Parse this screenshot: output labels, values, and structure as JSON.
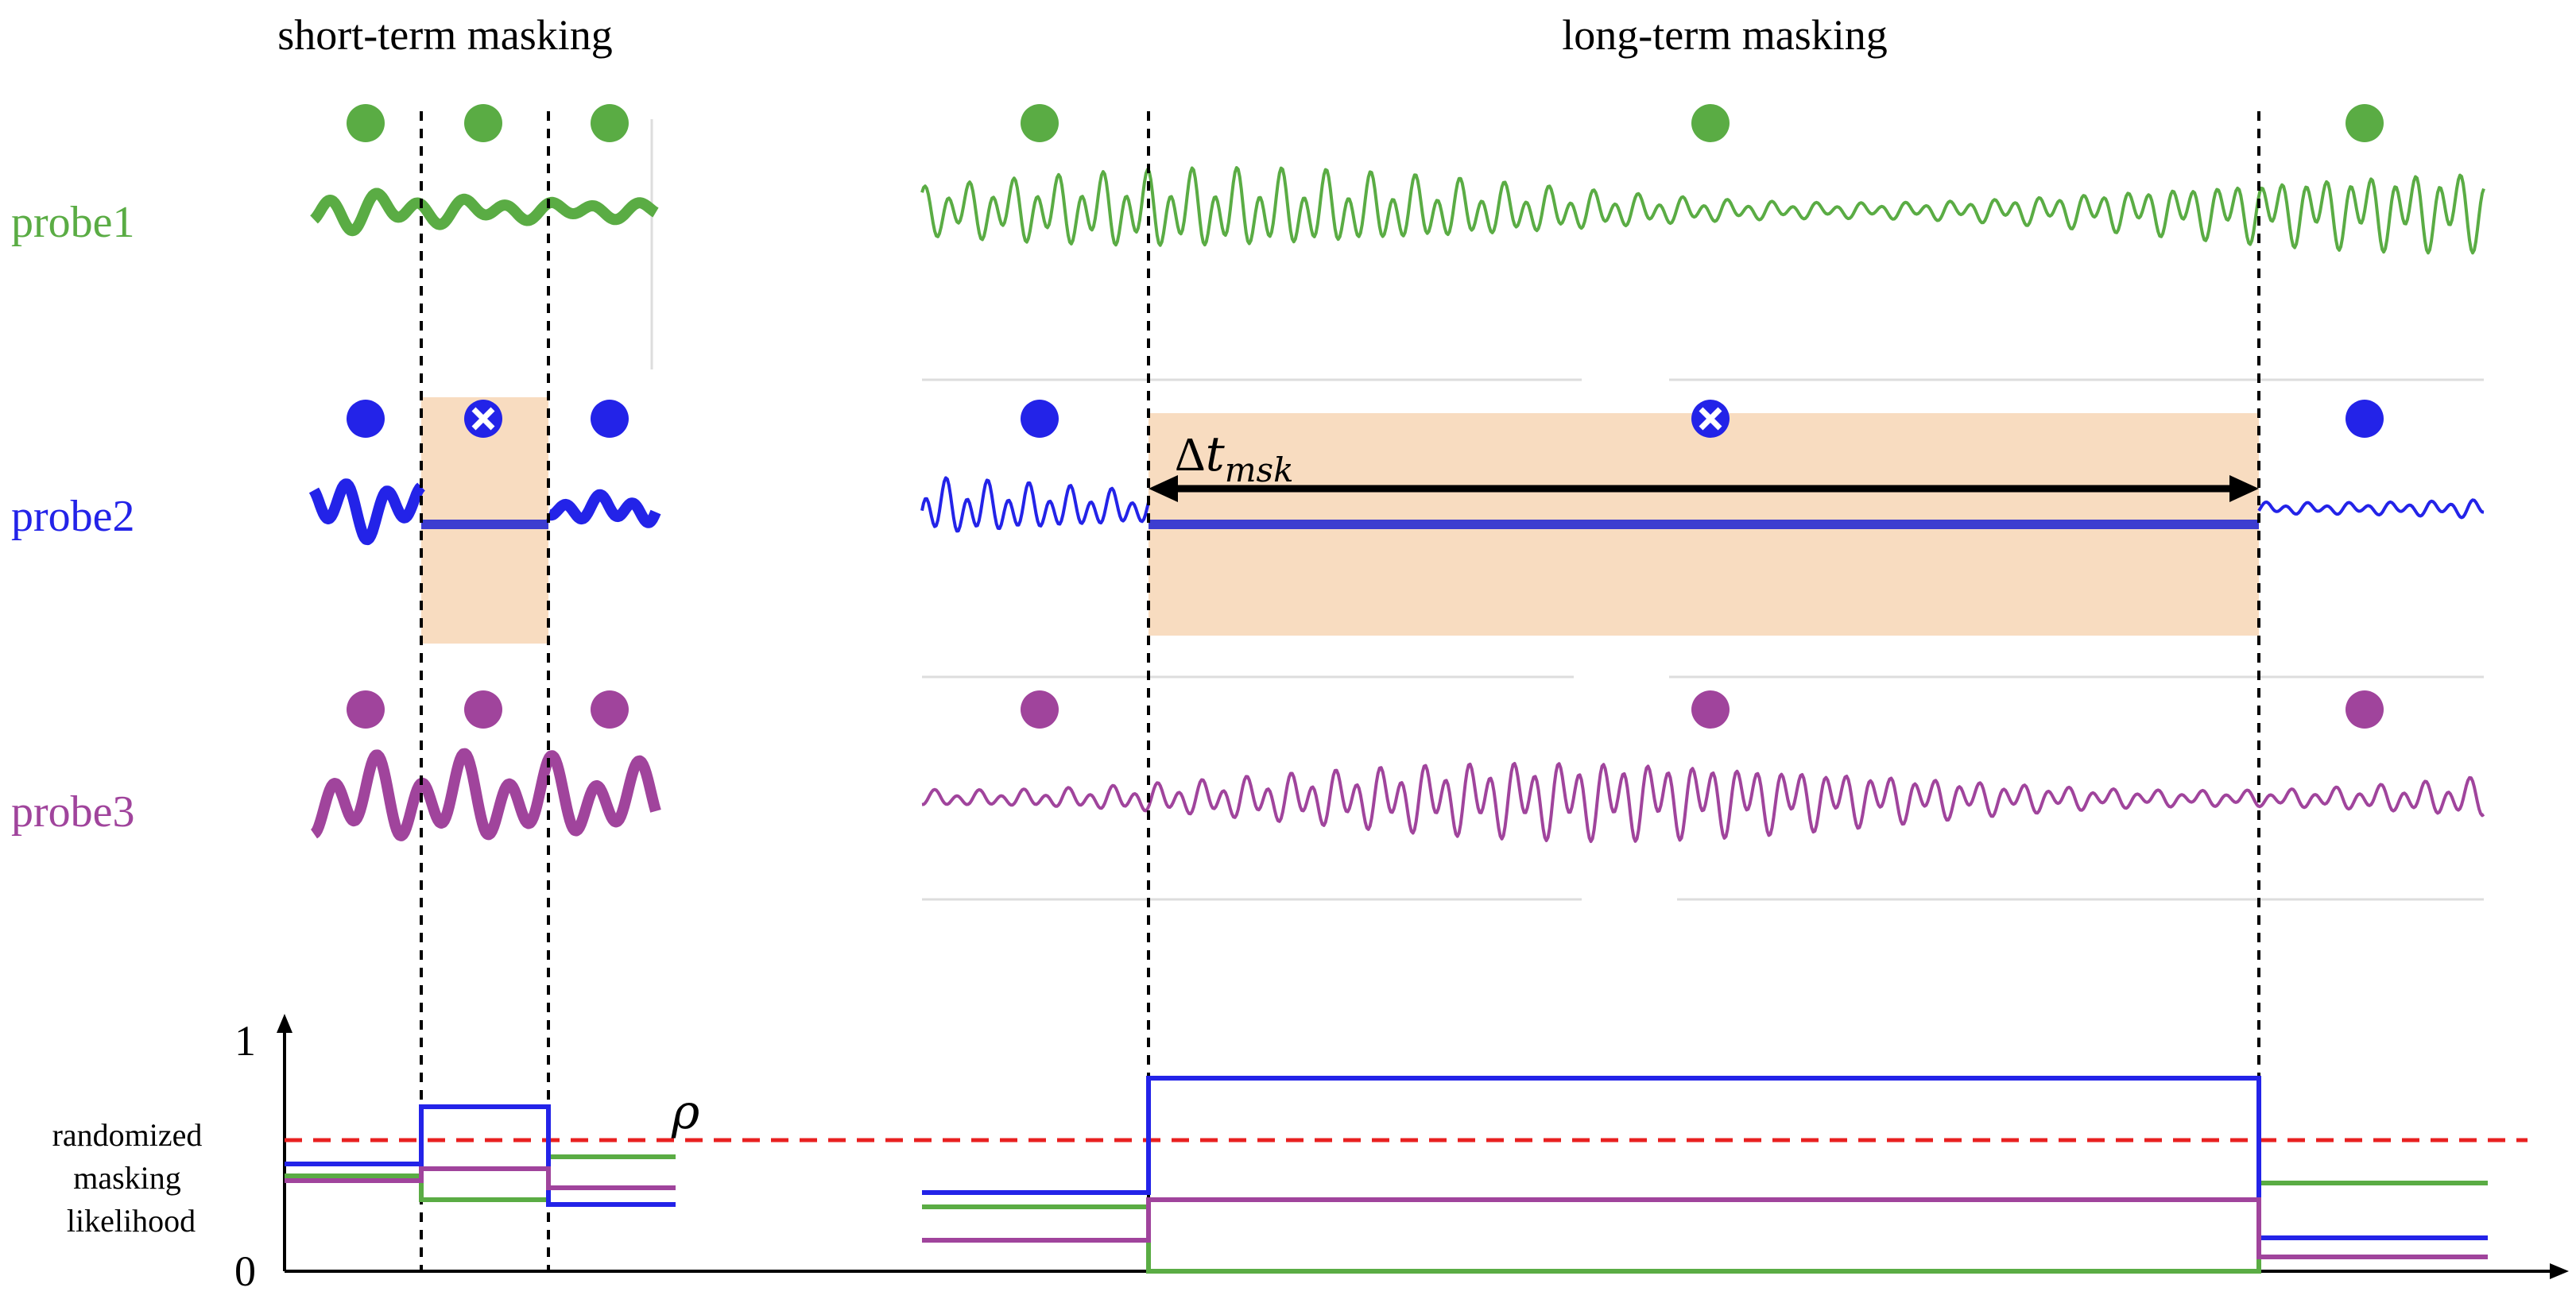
{
  "sections": {
    "short_term_title": "short-term masking",
    "long_term_title": "long-term masking"
  },
  "probes": [
    {
      "label": "probe1",
      "color": "#5aac44",
      "masked_short": false,
      "masked_long": false
    },
    {
      "label": "probe2",
      "color": "#2323e8",
      "masked_short": true,
      "masked_long": true
    },
    {
      "label": "probe3",
      "color": "#a0449c",
      "masked_short": false,
      "masked_long": false
    }
  ],
  "annotations": {
    "delta_t_main": "Δ",
    "delta_t_var": "t",
    "delta_t_sub": "msk",
    "rho": "ρ"
  },
  "likelihood_axis": {
    "label_lines": [
      "randomized",
      "masking",
      "likelihood"
    ],
    "y_max_label": "1",
    "y_min_label": "0",
    "threshold_color": "#e82020",
    "threshold_rho": 0.55
  },
  "chart_data": {
    "type": "line",
    "description": "Step plots of masking likelihood per probe per segment",
    "ylim": [
      0,
      1
    ],
    "threshold": 0.55,
    "short_term": {
      "segments": [
        "seg1",
        "seg2",
        "seg3"
      ],
      "series": [
        {
          "name": "probe1",
          "values": [
            0.4,
            0.3,
            0.48
          ]
        },
        {
          "name": "probe2",
          "values": [
            0.45,
            0.69,
            0.28
          ]
        },
        {
          "name": "probe3",
          "values": [
            0.38,
            0.43,
            0.35
          ]
        }
      ]
    },
    "long_term": {
      "segments": [
        "seg1",
        "seg2",
        "seg3"
      ],
      "series": [
        {
          "name": "probe1",
          "values": [
            0.27,
            0.0,
            0.37
          ]
        },
        {
          "name": "probe2",
          "values": [
            0.33,
            0.81,
            0.14
          ]
        },
        {
          "name": "probe3",
          "values": [
            0.13,
            0.3,
            0.06
          ]
        }
      ]
    }
  }
}
